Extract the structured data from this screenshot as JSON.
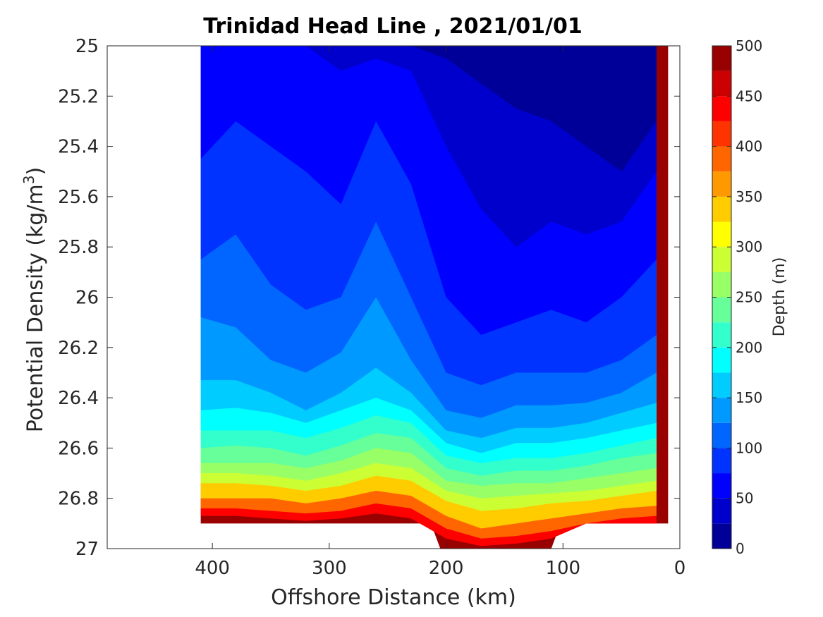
{
  "chart_data": {
    "type": "contour",
    "title": "Trinidad Head Line , 2021/01/01",
    "xlabel": "Offshore Distance (km)",
    "ylabel_main": "Potential Density (kg/m",
    "ylabel_sup": "3",
    "ylabel_close": ")",
    "xlim": [
      490,
      0
    ],
    "ylim": [
      25,
      27
    ],
    "x_reversed": true,
    "y_reversed": true,
    "xticks": [
      400,
      300,
      200,
      100,
      0
    ],
    "xtick_labels": [
      "400",
      "300",
      "200",
      "100",
      "0"
    ],
    "yticks": [
      25,
      25.2,
      25.4,
      25.6,
      25.8,
      26,
      26.2,
      26.4,
      26.6,
      26.8,
      27
    ],
    "ytick_labels": [
      "25",
      "25.2",
      "25.4",
      "25.6",
      "25.8",
      "26",
      "26.2",
      "26.4",
      "26.6",
      "26.8",
      "27"
    ],
    "colorbar": {
      "label": "Depth (m)",
      "range": [
        0,
        500
      ],
      "ticks": [
        0,
        50,
        100,
        150,
        200,
        250,
        300,
        350,
        400,
        450,
        500
      ],
      "tick_labels": [
        "0",
        "50",
        "100",
        "150",
        "200",
        "250",
        "300",
        "350",
        "400",
        "450",
        "500"
      ],
      "level_step": 25,
      "colormap": "jet"
    },
    "data_extent": {
      "x_min_km": 10,
      "x_max_km": 410,
      "bottom_density_shelf": 26.9,
      "bottom_density_deep": 27.0,
      "deep_segment_km": [
        110,
        205
      ]
    },
    "iso_depth_contours": [
      {
        "depth": 25,
        "density": [
          25.0,
          25.0,
          25.0,
          25.0,
          25.0,
          25.0,
          25.0,
          25.05,
          25.15,
          25.25,
          25.3,
          25.4,
          25.5,
          25.3
        ]
      },
      {
        "depth": 50,
        "density": [
          25.0,
          25.0,
          25.0,
          25.0,
          25.1,
          25.05,
          25.1,
          25.4,
          25.65,
          25.8,
          25.7,
          25.75,
          25.7,
          25.5
        ]
      },
      {
        "depth": 75,
        "density": [
          25.45,
          25.3,
          25.4,
          25.5,
          25.63,
          25.3,
          25.55,
          26.0,
          26.15,
          26.1,
          26.05,
          26.1,
          26.0,
          25.85
        ]
      },
      {
        "depth": 100,
        "density": [
          25.85,
          25.75,
          25.95,
          26.05,
          26.0,
          25.7,
          26.0,
          26.3,
          26.35,
          26.3,
          26.3,
          26.3,
          26.25,
          26.15
        ]
      },
      {
        "depth": 125,
        "density": [
          26.08,
          26.12,
          26.25,
          26.3,
          26.22,
          26.0,
          26.25,
          26.45,
          26.48,
          26.43,
          26.43,
          26.42,
          26.38,
          26.3
        ]
      },
      {
        "depth": 150,
        "density": [
          26.33,
          26.33,
          26.38,
          26.45,
          26.38,
          26.28,
          26.38,
          26.53,
          26.56,
          26.52,
          26.52,
          26.5,
          26.46,
          26.42
        ]
      },
      {
        "depth": 175,
        "density": [
          26.45,
          26.44,
          26.46,
          26.5,
          26.45,
          26.4,
          26.45,
          26.58,
          26.62,
          26.58,
          26.58,
          26.56,
          26.53,
          26.5
        ]
      },
      {
        "depth": 200,
        "density": [
          26.53,
          26.53,
          26.53,
          26.56,
          26.52,
          26.47,
          26.5,
          26.63,
          26.66,
          26.64,
          26.64,
          26.62,
          26.59,
          26.56
        ]
      },
      {
        "depth": 225,
        "density": [
          26.6,
          26.59,
          26.6,
          26.63,
          26.59,
          26.54,
          26.56,
          26.68,
          26.71,
          26.69,
          26.69,
          26.67,
          26.64,
          26.62
        ]
      },
      {
        "depth": 250,
        "density": [
          26.66,
          26.66,
          26.66,
          26.68,
          26.65,
          26.6,
          26.62,
          26.73,
          26.75,
          26.74,
          26.74,
          26.72,
          26.7,
          26.68
        ]
      },
      {
        "depth": 275,
        "density": [
          26.7,
          26.7,
          26.71,
          26.73,
          26.7,
          26.66,
          26.68,
          26.77,
          26.8,
          26.79,
          26.78,
          26.77,
          26.75,
          26.73
        ]
      },
      {
        "depth": 300,
        "density": [
          26.74,
          26.74,
          26.75,
          26.77,
          26.75,
          26.71,
          26.73,
          26.81,
          26.85,
          26.84,
          26.82,
          26.81,
          26.79,
          26.77
        ]
      },
      {
        "depth": 350,
        "density": [
          26.8,
          26.8,
          26.8,
          26.82,
          26.8,
          26.77,
          26.79,
          26.87,
          26.92,
          26.9,
          26.88,
          26.86,
          26.84,
          26.83
        ]
      },
      {
        "depth": 400,
        "density": [
          26.84,
          26.84,
          26.85,
          26.86,
          26.85,
          26.82,
          26.84,
          26.92,
          26.96,
          26.95,
          26.93,
          26.9,
          26.88,
          26.87
        ]
      },
      {
        "depth": 450,
        "density": [
          26.87,
          26.87,
          26.88,
          26.89,
          26.88,
          26.86,
          26.88,
          26.96,
          26.99,
          26.98,
          26.96,
          26.93,
          26.91,
          26.9
        ]
      }
    ],
    "contour_x_km": [
      410,
      380,
      350,
      320,
      290,
      260,
      230,
      200,
      170,
      140,
      110,
      80,
      50,
      20
    ]
  }
}
